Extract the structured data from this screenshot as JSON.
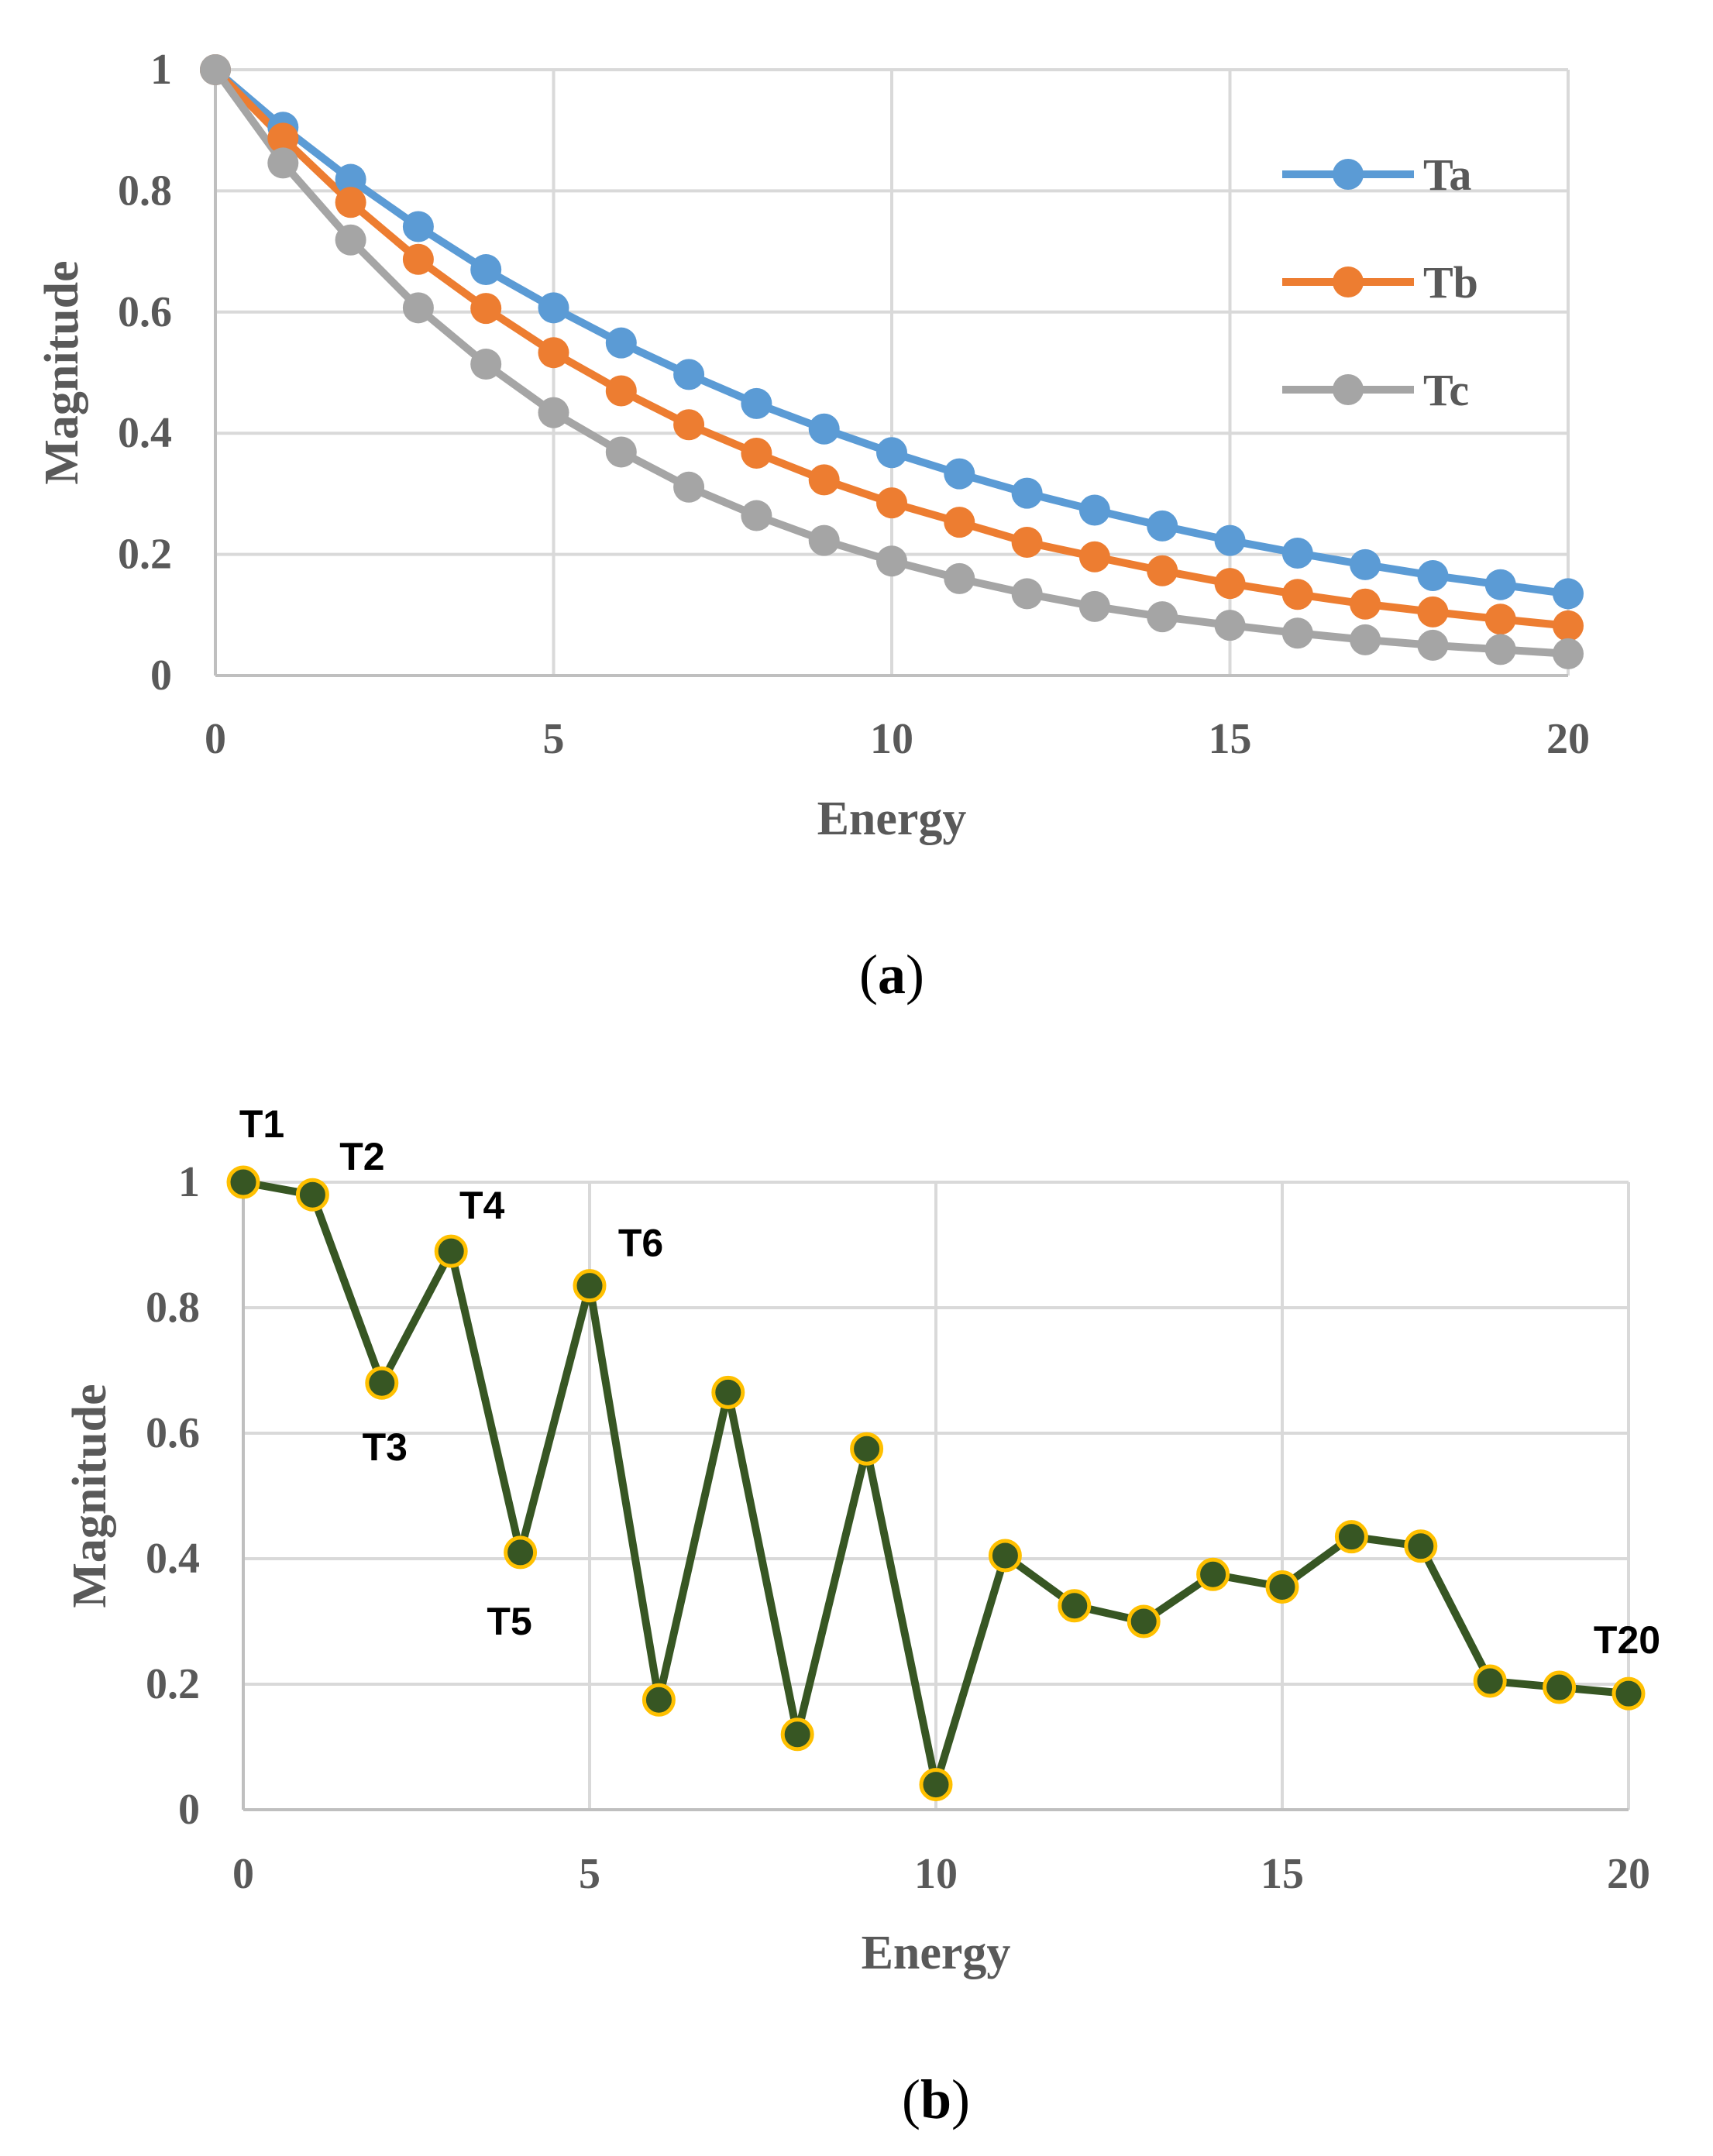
{
  "chart_data": [
    {
      "id": "a",
      "type": "line",
      "title": "",
      "xlabel": "Energy",
      "ylabel": "Magnitude",
      "xlim": [
        0,
        20
      ],
      "ylim": [
        0,
        1
      ],
      "xticks": [
        "0",
        "5",
        "10",
        "15",
        "20"
      ],
      "yticks": [
        "0",
        "0.2",
        "0.4",
        "0.6",
        "0.8",
        "1"
      ],
      "grid": true,
      "legend_position": "right",
      "caption_prefix": "(",
      "caption_letter": "a",
      "caption_suffix": ")",
      "x": [
        0,
        1,
        2,
        3,
        4,
        5,
        6,
        7,
        8,
        9,
        10,
        11,
        12,
        13,
        14,
        15,
        16,
        17,
        18,
        19,
        20
      ],
      "series": [
        {
          "name": "Ta",
          "color": "#5b9bd5",
          "values": [
            1.0,
            0.905,
            0.819,
            0.741,
            0.67,
            0.607,
            0.549,
            0.497,
            0.449,
            0.407,
            0.368,
            0.333,
            0.301,
            0.273,
            0.247,
            0.223,
            0.202,
            0.183,
            0.165,
            0.15,
            0.135
          ]
        },
        {
          "name": "Tb",
          "color": "#ed7d31",
          "values": [
            1.0,
            0.887,
            0.781,
            0.687,
            0.606,
            0.533,
            0.47,
            0.414,
            0.367,
            0.323,
            0.285,
            0.253,
            0.22,
            0.196,
            0.173,
            0.152,
            0.134,
            0.118,
            0.105,
            0.093,
            0.082
          ]
        },
        {
          "name": "Tc",
          "color": "#a5a5a5",
          "values": [
            1.0,
            0.846,
            0.719,
            0.607,
            0.514,
            0.434,
            0.369,
            0.311,
            0.264,
            0.223,
            0.189,
            0.16,
            0.135,
            0.114,
            0.097,
            0.083,
            0.07,
            0.059,
            0.05,
            0.043,
            0.036
          ]
        }
      ]
    },
    {
      "id": "b",
      "type": "line",
      "title": "",
      "xlabel": "Energy",
      "ylabel": "Magnitude",
      "xlim": [
        0,
        20
      ],
      "ylim": [
        0,
        1
      ],
      "xticks": [
        "0",
        "5",
        "10",
        "15",
        "20"
      ],
      "yticks": [
        "0",
        "0.2",
        "0.4",
        "0.6",
        "0.8",
        "1"
      ],
      "grid": true,
      "caption_prefix": "(",
      "caption_letter": "b",
      "caption_suffix": ")",
      "line_color": "#375623",
      "marker_fill": "#375623",
      "marker_edge": "#ffc000",
      "x": [
        0,
        1,
        2,
        3,
        4,
        5,
        6,
        7,
        8,
        9,
        10,
        11,
        12,
        13,
        14,
        15,
        16,
        17,
        18,
        19,
        20
      ],
      "values": [
        1.0,
        0.98,
        0.68,
        0.89,
        0.41,
        0.835,
        0.175,
        0.665,
        0.12,
        0.575,
        0.04,
        0.405,
        0.325,
        0.3,
        0.375,
        0.355,
        0.435,
        0.42,
        0.205,
        0.195,
        0.185
      ],
      "annotations": [
        {
          "label": "T1",
          "x": 0,
          "y": 1.0
        },
        {
          "label": "T2",
          "x": 1,
          "y": 0.98
        },
        {
          "label": "T3",
          "x": 2,
          "y": 0.68
        },
        {
          "label": "T4",
          "x": 3,
          "y": 0.89
        },
        {
          "label": "T5",
          "x": 4,
          "y": 0.41
        },
        {
          "label": "T6",
          "x": 5,
          "y": 0.835
        },
        {
          "label": "T20",
          "x": 20,
          "y": 0.185
        }
      ]
    }
  ]
}
